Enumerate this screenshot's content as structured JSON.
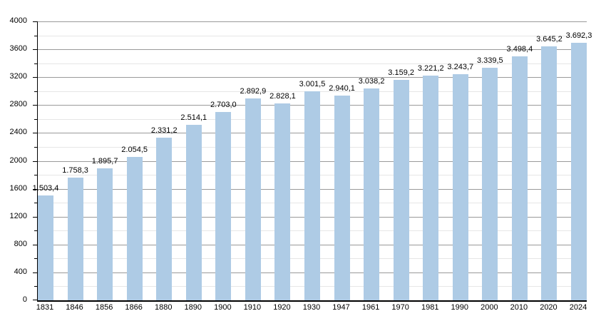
{
  "chart_data": {
    "type": "bar",
    "title": "",
    "xlabel": "",
    "ylabel": "",
    "categories": [
      "1831",
      "1846",
      "1856",
      "1866",
      "1880",
      "1890",
      "1900",
      "1910",
      "1920",
      "1930",
      "1947",
      "1961",
      "1970",
      "1981",
      "1990",
      "2000",
      "2010",
      "2020",
      "2024"
    ],
    "values": [
      1503.4,
      1758.3,
      1895.7,
      2054.5,
      2331.2,
      2514.1,
      2703.0,
      2892.9,
      2828.1,
      3001.5,
      2940.1,
      3038.2,
      3159.2,
      3221.2,
      3243.7,
      3339.5,
      3498.4,
      3645.2,
      3692.3
    ],
    "value_labels": [
      "1.503,4",
      "1.758,3",
      "1.895,7",
      "2.054,5",
      "2.331,2",
      "2.514,1",
      "2.703,0",
      "2.892,9",
      "2.828,1",
      "3.001,5",
      "2.940,1",
      "3.038,2",
      "3.159,2",
      "3.221,2",
      "3.243,7",
      "3.339,5",
      "3.498,4",
      "3.645,2",
      "3.692,3"
    ],
    "ylim": [
      0,
      4000
    ],
    "y_major_step": 400,
    "y_minor_step": 200,
    "y_tick_labels": [
      "0",
      "400",
      "800",
      "1200",
      "1600",
      "2000",
      "2400",
      "2800",
      "3200",
      "3600",
      "4000"
    ],
    "grid": true,
    "legend": "none",
    "colors": {
      "bar_fill": "#aecbe5",
      "grid_major": "#9a9a9a",
      "grid_minor": "#e6e6e6",
      "axis": "#000000",
      "text": "#000000",
      "background": "#ffffff"
    }
  }
}
